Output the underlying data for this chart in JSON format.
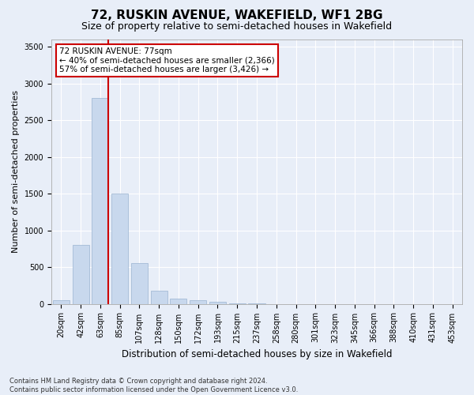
{
  "title1": "72, RUSKIN AVENUE, WAKEFIELD, WF1 2BG",
  "title2": "Size of property relative to semi-detached houses in Wakefield",
  "xlabel": "Distribution of semi-detached houses by size in Wakefield",
  "ylabel": "Number of semi-detached properties",
  "footnote1": "Contains HM Land Registry data © Crown copyright and database right 2024.",
  "footnote2": "Contains public sector information licensed under the Open Government Licence v3.0.",
  "annotation_title": "72 RUSKIN AVENUE: 77sqm",
  "annotation_line1": "← 40% of semi-detached houses are smaller (2,366)",
  "annotation_line2": "57% of semi-detached houses are larger (3,426) →",
  "categories": [
    "20sqm",
    "42sqm",
    "63sqm",
    "85sqm",
    "107sqm",
    "128sqm",
    "150sqm",
    "172sqm",
    "193sqm",
    "215sqm",
    "237sqm",
    "258sqm",
    "280sqm",
    "301sqm",
    "323sqm",
    "345sqm",
    "366sqm",
    "388sqm",
    "410sqm",
    "431sqm",
    "453sqm"
  ],
  "values": [
    50,
    800,
    2800,
    1500,
    550,
    175,
    75,
    50,
    30,
    10,
    5,
    0,
    0,
    0,
    0,
    0,
    0,
    0,
    0,
    0,
    0
  ],
  "bar_color": "#c8d8ed",
  "bar_edge_color": "#9ab4d0",
  "vline_color": "#cc0000",
  "vline_bin": 2,
  "annotation_box_color": "#ffffff",
  "annotation_box_edge": "#cc0000",
  "background_color": "#e8eef8",
  "plot_bg_color": "#e8eef8",
  "ylim": [
    0,
    3600
  ],
  "yticks": [
    0,
    500,
    1000,
    1500,
    2000,
    2500,
    3000,
    3500
  ],
  "grid_color": "#ffffff",
  "title1_fontsize": 11,
  "title2_fontsize": 9,
  "ylabel_fontsize": 8,
  "xlabel_fontsize": 8.5,
  "tick_fontsize": 7,
  "annot_fontsize": 7.5,
  "footnote_fontsize": 6
}
